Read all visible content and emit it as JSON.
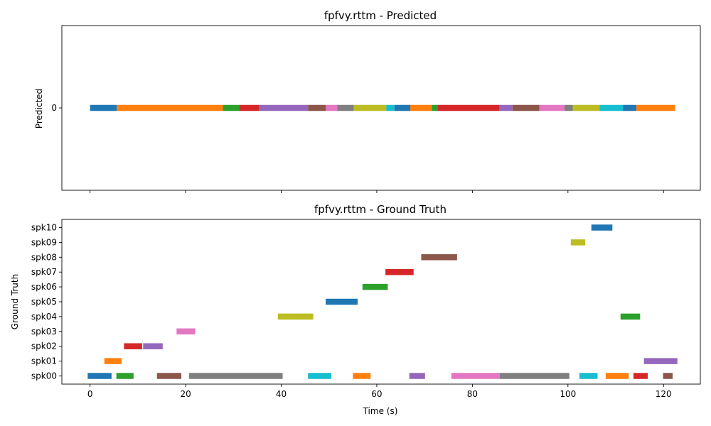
{
  "palette": [
    "#1f77b4",
    "#ff7f0e",
    "#2ca02c",
    "#d62728",
    "#9467bd",
    "#8c564b",
    "#e377c2",
    "#7f7f7f",
    "#bcbd22",
    "#17becf"
  ],
  "chart_data": [
    {
      "type": "timeline",
      "title": "fpfvy.rttm - Predicted",
      "ylabel": "Predicted",
      "xlabel": "",
      "xlim": [
        -5.9,
        127.7
      ],
      "xticks": [
        0,
        20,
        40,
        60,
        80,
        100,
        120
      ],
      "show_xtick_labels": false,
      "rows": [
        "0"
      ],
      "segments": [
        {
          "row": "0",
          "start": 0.0,
          "end": 5.6,
          "color": "#1f77b4"
        },
        {
          "row": "0",
          "start": 5.6,
          "end": 27.8,
          "color": "#ff7f0e"
        },
        {
          "row": "0",
          "start": 27.8,
          "end": 31.2,
          "color": "#2ca02c"
        },
        {
          "row": "0",
          "start": 31.2,
          "end": 35.4,
          "color": "#d62728"
        },
        {
          "row": "0",
          "start": 35.4,
          "end": 45.6,
          "color": "#9467bd"
        },
        {
          "row": "0",
          "start": 45.6,
          "end": 49.3,
          "color": "#8c564b"
        },
        {
          "row": "0",
          "start": 49.3,
          "end": 51.7,
          "color": "#e377c2"
        },
        {
          "row": "0",
          "start": 51.7,
          "end": 55.2,
          "color": "#7f7f7f"
        },
        {
          "row": "0",
          "start": 55.2,
          "end": 62.0,
          "color": "#bcbd22"
        },
        {
          "row": "0",
          "start": 62.0,
          "end": 63.7,
          "color": "#17becf"
        },
        {
          "row": "0",
          "start": 63.7,
          "end": 67.0,
          "color": "#1f77b4"
        },
        {
          "row": "0",
          "start": 67.0,
          "end": 71.5,
          "color": "#ff7f0e"
        },
        {
          "row": "0",
          "start": 71.5,
          "end": 72.8,
          "color": "#2ca02c"
        },
        {
          "row": "0",
          "start": 72.8,
          "end": 85.7,
          "color": "#d62728"
        },
        {
          "row": "0",
          "start": 85.7,
          "end": 88.4,
          "color": "#9467bd"
        },
        {
          "row": "0",
          "start": 88.4,
          "end": 94.0,
          "color": "#8c564b"
        },
        {
          "row": "0",
          "start": 94.0,
          "end": 99.3,
          "color": "#e377c2"
        },
        {
          "row": "0",
          "start": 99.3,
          "end": 101.0,
          "color": "#7f7f7f"
        },
        {
          "row": "0",
          "start": 101.0,
          "end": 106.6,
          "color": "#bcbd22"
        },
        {
          "row": "0",
          "start": 106.6,
          "end": 111.5,
          "color": "#17becf"
        },
        {
          "row": "0",
          "start": 111.5,
          "end": 114.3,
          "color": "#1f77b4"
        },
        {
          "row": "0",
          "start": 114.3,
          "end": 122.4,
          "color": "#ff7f0e"
        }
      ]
    },
    {
      "type": "timeline",
      "title": "fpfvy.rttm - Ground Truth",
      "ylabel": "Ground Truth",
      "xlabel": "Time (s)",
      "xlim": [
        -5.9,
        127.7
      ],
      "xticks": [
        0,
        20,
        40,
        60,
        80,
        100,
        120
      ],
      "show_xtick_labels": true,
      "rows": [
        "spk00",
        "spk01",
        "spk02",
        "spk03",
        "spk04",
        "spk05",
        "spk06",
        "spk07",
        "spk08",
        "spk09",
        "spk10"
      ],
      "segments": [
        {
          "row": "spk00",
          "start": -0.5,
          "end": 4.5,
          "color": "#1f77b4"
        },
        {
          "row": "spk00",
          "start": 5.5,
          "end": 9.1,
          "color": "#2ca02c"
        },
        {
          "row": "spk00",
          "start": 14.0,
          "end": 19.1,
          "color": "#8c564b"
        },
        {
          "row": "spk00",
          "start": 20.7,
          "end": 40.3,
          "color": "#7f7f7f"
        },
        {
          "row": "spk00",
          "start": 45.6,
          "end": 50.5,
          "color": "#17becf"
        },
        {
          "row": "spk00",
          "start": 55.0,
          "end": 58.7,
          "color": "#ff7f0e"
        },
        {
          "row": "spk00",
          "start": 66.8,
          "end": 70.1,
          "color": "#9467bd"
        },
        {
          "row": "spk00",
          "start": 75.6,
          "end": 85.7,
          "color": "#e377c2"
        },
        {
          "row": "spk00",
          "start": 85.7,
          "end": 100.3,
          "color": "#7f7f7f"
        },
        {
          "row": "spk00",
          "start": 102.4,
          "end": 106.2,
          "color": "#17becf"
        },
        {
          "row": "spk00",
          "start": 107.9,
          "end": 112.7,
          "color": "#ff7f0e"
        },
        {
          "row": "spk00",
          "start": 113.7,
          "end": 116.7,
          "color": "#d62728"
        },
        {
          "row": "spk00",
          "start": 119.9,
          "end": 121.9,
          "color": "#8c564b"
        },
        {
          "row": "spk01",
          "start": 3.0,
          "end": 6.6,
          "color": "#ff7f0e"
        },
        {
          "row": "spk01",
          "start": 115.9,
          "end": 122.9,
          "color": "#9467bd"
        },
        {
          "row": "spk02",
          "start": 7.1,
          "end": 10.9,
          "color": "#d62728"
        },
        {
          "row": "spk02",
          "start": 11.1,
          "end": 15.2,
          "color": "#9467bd"
        },
        {
          "row": "spk03",
          "start": 18.1,
          "end": 22.0,
          "color": "#e377c2"
        },
        {
          "row": "spk04",
          "start": 39.3,
          "end": 46.7,
          "color": "#bcbd22"
        },
        {
          "row": "spk04",
          "start": 111.0,
          "end": 115.1,
          "color": "#2ca02c"
        },
        {
          "row": "spk05",
          "start": 49.3,
          "end": 56.0,
          "color": "#1f77b4"
        },
        {
          "row": "spk06",
          "start": 57.0,
          "end": 62.3,
          "color": "#2ca02c"
        },
        {
          "row": "spk07",
          "start": 61.8,
          "end": 67.7,
          "color": "#d62728"
        },
        {
          "row": "spk08",
          "start": 69.3,
          "end": 76.8,
          "color": "#8c564b"
        },
        {
          "row": "spk09",
          "start": 100.6,
          "end": 103.6,
          "color": "#bcbd22"
        },
        {
          "row": "spk10",
          "start": 104.9,
          "end": 109.3,
          "color": "#1f77b4"
        }
      ]
    }
  ]
}
